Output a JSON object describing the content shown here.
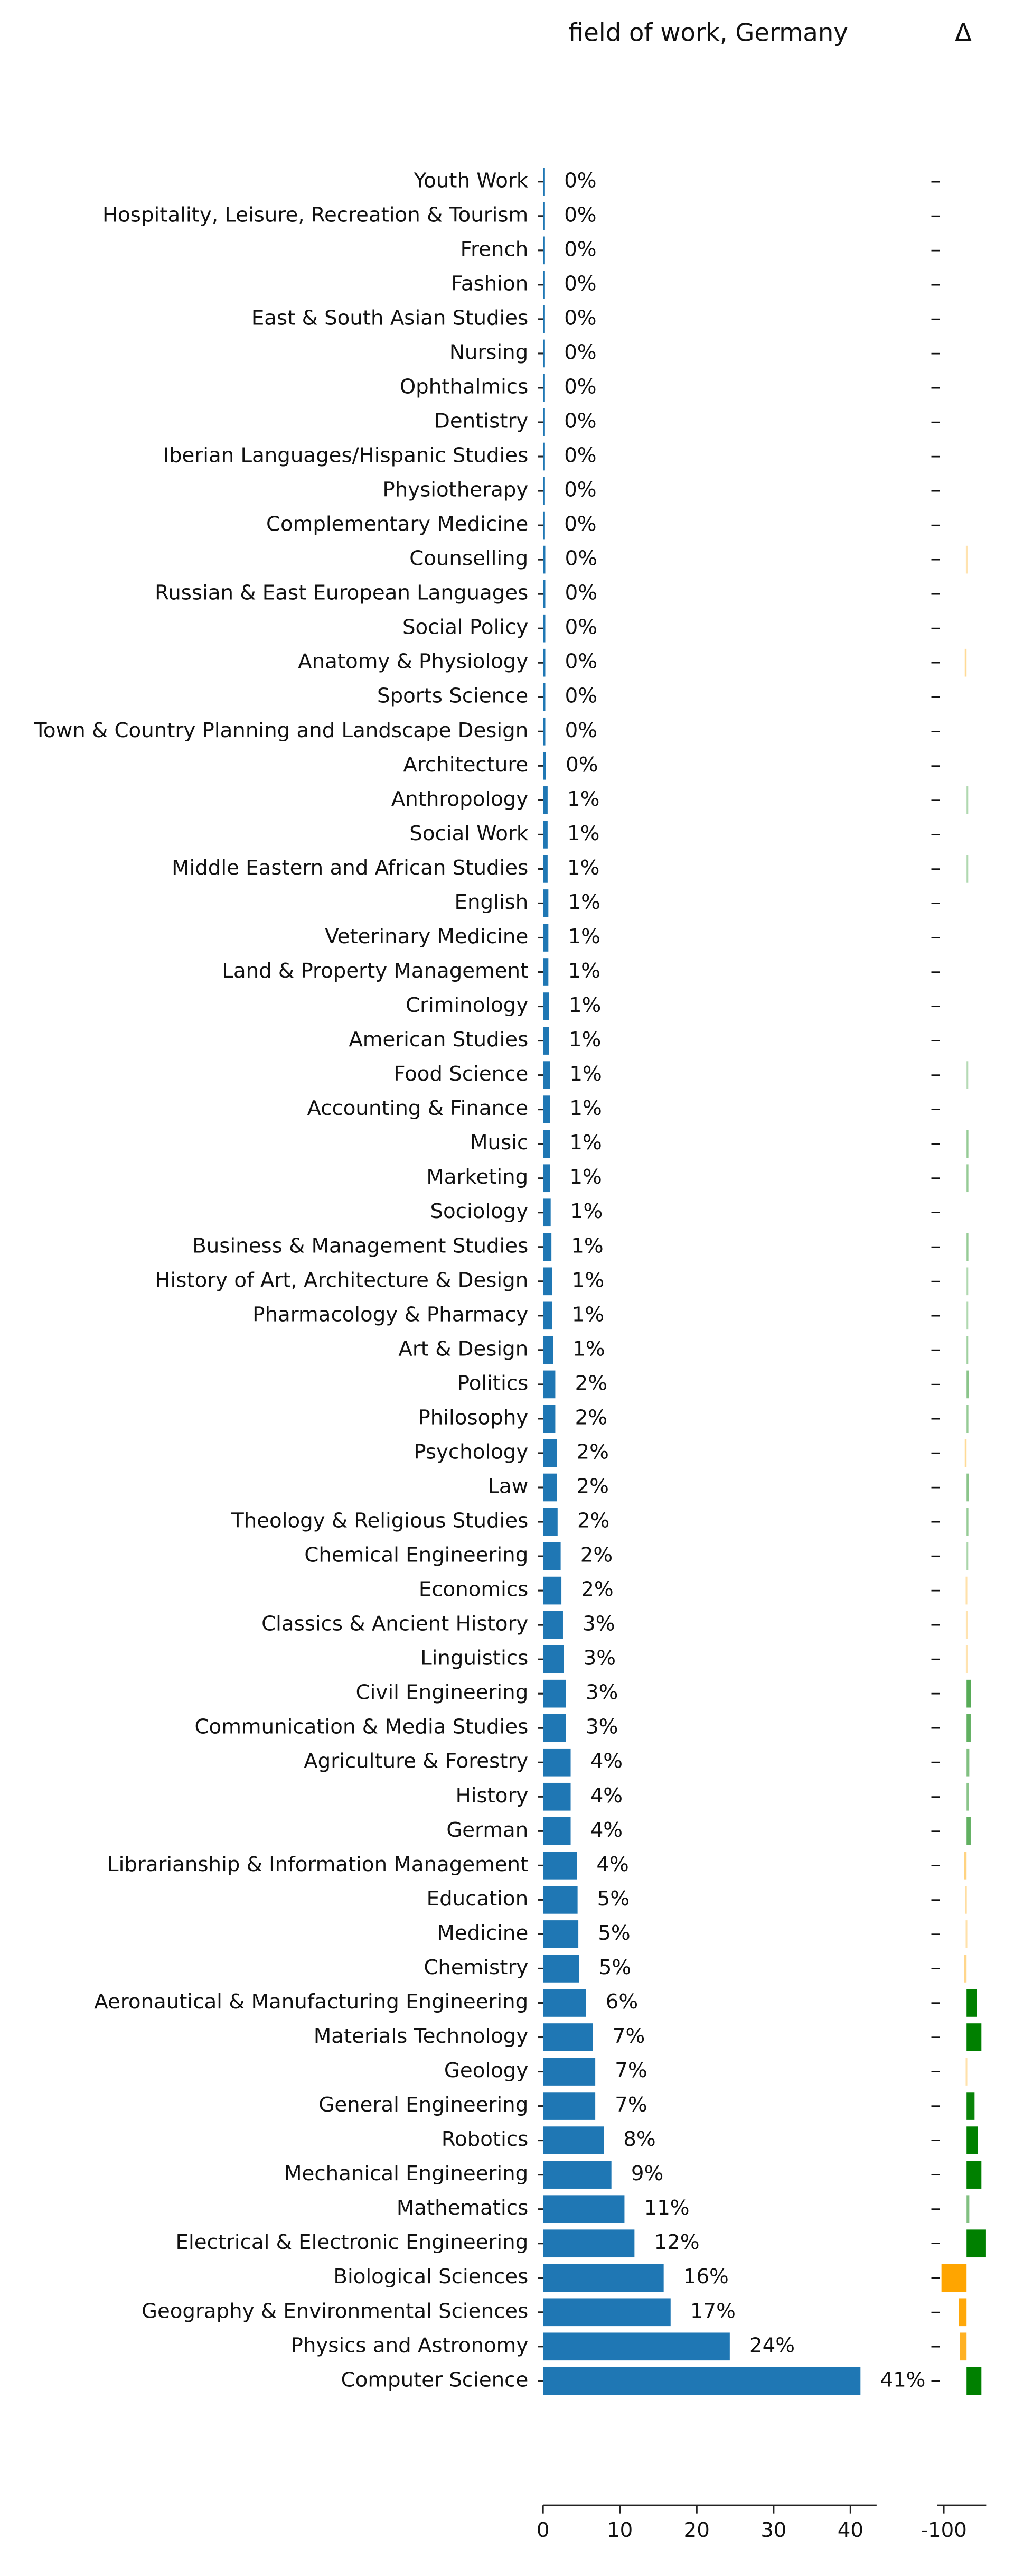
{
  "chart_data": [
    {
      "type": "hbar",
      "title": "field of work, Germany",
      "color": "#1f77b4",
      "categories": [
        "Youth Work",
        "Hospitality, Leisure, Recreation & Tourism",
        "French",
        "Fashion",
        "East & South Asian Studies",
        "Nursing",
        "Ophthalmics",
        "Dentistry",
        "Iberian Languages/Hispanic Studies",
        "Physiotherapy",
        "Complementary Medicine",
        "Counselling",
        "Russian & East European Languages",
        "Social Policy",
        "Anatomy & Physiology",
        "Sports Science",
        "Town & Country Planning and Landscape Design",
        "Architecture",
        "Anthropology",
        "Social Work",
        "Middle Eastern and African Studies",
        "English",
        "Veterinary Medicine",
        "Land & Property Management",
        "Criminology",
        "American Studies",
        "Food Science",
        "Accounting & Finance",
        "Music",
        "Marketing",
        "Sociology",
        "Business & Management Studies",
        "History of Art, Architecture & Design",
        "Pharmacology & Pharmacy",
        "Art & Design",
        "Politics",
        "Philosophy",
        "Psychology",
        "Law",
        "Theology & Religious Studies",
        "Chemical Engineering",
        "Economics",
        "Classics & Ancient History",
        "Linguistics",
        "Civil Engineering",
        "Communication & Media Studies",
        "Agriculture & Forestry",
        "History",
        "German",
        "Librarianship & Information Management",
        "Education",
        "Medicine",
        "Chemistry",
        "Aeronautical & Manufacturing Engineering",
        "Materials Technology",
        "Geology",
        "General Engineering",
        "Robotics",
        "Mechanical Engineering",
        "Mathematics",
        "Electrical & Electronic Engineering",
        "Biological Sciences",
        "Geography & Environmental Sciences",
        "Physics and Astronomy",
        "Computer Science"
      ],
      "values": [
        0.2,
        0.2,
        0.2,
        0.2,
        0.2,
        0.2,
        0.2,
        0.2,
        0.2,
        0.2,
        0.2,
        0.3,
        0.3,
        0.3,
        0.3,
        0.3,
        0.3,
        0.4,
        0.6,
        0.6,
        0.6,
        0.7,
        0.7,
        0.7,
        0.8,
        0.8,
        0.9,
        0.9,
        0.9,
        0.9,
        1.0,
        1.1,
        1.2,
        1.2,
        1.3,
        1.6,
        1.6,
        1.8,
        1.8,
        1.9,
        2.3,
        2.4,
        2.6,
        2.7,
        3.0,
        3.0,
        3.6,
        3.6,
        3.6,
        4.4,
        4.5,
        4.6,
        4.7,
        5.6,
        6.5,
        6.8,
        6.8,
        7.9,
        8.9,
        10.6,
        11.9,
        15.7,
        16.6,
        24.3,
        41.3
      ],
      "value_labels": [
        "0%",
        "0%",
        "0%",
        "0%",
        "0%",
        "0%",
        "0%",
        "0%",
        "0%",
        "0%",
        "0%",
        "0%",
        "0%",
        "0%",
        "0%",
        "0%",
        "0%",
        "0%",
        "1%",
        "1%",
        "1%",
        "1%",
        "1%",
        "1%",
        "1%",
        "1%",
        "1%",
        "1%",
        "1%",
        "1%",
        "1%",
        "1%",
        "1%",
        "1%",
        "1%",
        "2%",
        "2%",
        "2%",
        "2%",
        "2%",
        "2%",
        "2%",
        "3%",
        "3%",
        "3%",
        "3%",
        "4%",
        "4%",
        "4%",
        "4%",
        "5%",
        "5%",
        "5%",
        "6%",
        "7%",
        "7%",
        "7%",
        "8%",
        "9%",
        "11%",
        "12%",
        "16%",
        "17%",
        "24%",
        "41%"
      ],
      "xlim": [
        0,
        43.4
      ],
      "xticks": [
        0,
        10,
        20,
        30,
        40
      ]
    },
    {
      "type": "delta",
      "title": "Δ",
      "positive_color": "#008000",
      "negative_color": "#ffa500",
      "values": [
        null,
        null,
        null,
        null,
        null,
        null,
        null,
        null,
        null,
        null,
        null,
        -3,
        null,
        null,
        -8,
        null,
        null,
        null,
        3,
        null,
        3,
        null,
        null,
        null,
        null,
        null,
        2,
        null,
        8,
        8,
        null,
        8,
        3,
        3,
        6,
        10,
        8,
        -8,
        10,
        8,
        4,
        -4,
        -3,
        -3,
        20,
        18,
        12,
        10,
        18,
        -12,
        -6,
        -4,
        -10,
        45,
        65,
        -4,
        35,
        50,
        65,
        12,
        85,
        -110,
        -35,
        -30,
        65
      ],
      "labels": [
        "–",
        "–",
        "–",
        "–",
        "–",
        "–",
        "–",
        "–",
        "–",
        "–",
        "–",
        "–",
        "–",
        "–",
        "–",
        "–",
        "–",
        "–",
        "–",
        "–",
        "–",
        "–",
        "–",
        "–",
        "–",
        "–",
        "–",
        "–",
        "–",
        "–",
        "–",
        "–",
        "–",
        "–",
        "–",
        "–",
        "–",
        "–",
        "–",
        "–",
        "–",
        "–",
        "–",
        "–",
        "–",
        "–",
        "–",
        "–",
        "–",
        "–",
        "–",
        "–",
        "–",
        "–",
        "–",
        "–",
        "–",
        "–",
        "–",
        "–",
        "–",
        "–",
        "–",
        "–",
        "–"
      ],
      "xlim": [
        -129,
        86
      ],
      "xticks": [
        -100
      ]
    }
  ]
}
